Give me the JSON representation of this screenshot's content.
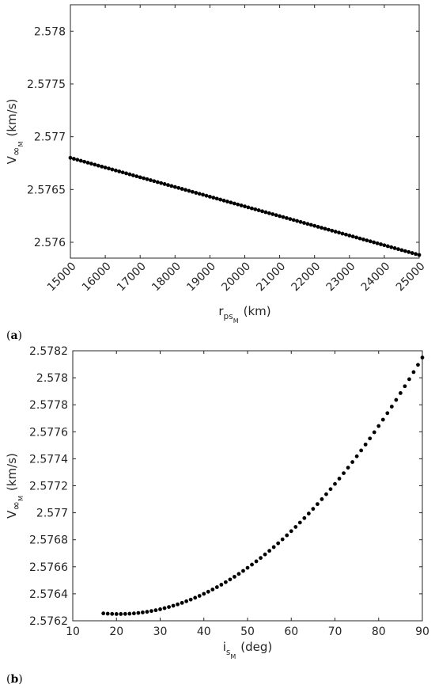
{
  "chart_data": [
    {
      "type": "scatter",
      "panel_label": "a",
      "xlabel": {
        "main": "r",
        "sub": "ps",
        "subsub": "M",
        "unit": "(km)"
      },
      "ylabel": {
        "main": "V",
        "sub": "∞",
        "subsub": "M",
        "unit": "(km/s)"
      },
      "xlim": [
        15000,
        25000
      ],
      "ylim": [
        2.57585,
        2.57825
      ],
      "xticks": [
        "15000",
        "16000",
        "17000",
        "18000",
        "19000",
        "20000",
        "21000",
        "22000",
        "23000",
        "24000",
        "25000"
      ],
      "xtick_values": [
        15000,
        16000,
        17000,
        18000,
        19000,
        20000,
        21000,
        22000,
        23000,
        24000,
        25000
      ],
      "yticks": [
        "2.576",
        "2.5765",
        "2.577",
        "2.5775",
        "2.578"
      ],
      "ytick_values": [
        2.576,
        2.5765,
        2.577,
        2.5775,
        2.578
      ],
      "series": [
        {
          "line": {
            "x_start": 15000,
            "x_end": 25000,
            "y_start": 2.5768,
            "y_end": 2.57588,
            "n_points": 101
          }
        }
      ],
      "grid": false,
      "marker_color": "#000000"
    },
    {
      "type": "scatter",
      "panel_label": "b",
      "xlabel": {
        "main": "i",
        "sub": "s",
        "subsub": "M",
        "unit": "(deg)"
      },
      "ylabel": {
        "main": "V",
        "sub": "∞",
        "subsub": "M",
        "unit": "(km/s)"
      },
      "xlim": [
        10,
        90
      ],
      "ylim": [
        2.5762,
        2.5782
      ],
      "xticks": [
        "10",
        "20",
        "30",
        "40",
        "50",
        "60",
        "70",
        "80",
        "90"
      ],
      "xtick_values": [
        10,
        20,
        30,
        40,
        50,
        60,
        70,
        80,
        90
      ],
      "yticks": [
        "2.5762",
        "2.5764",
        "2.5766",
        "2.5768",
        "2.577",
        "2.5772",
        "2.5774",
        "2.5776",
        "2.5778",
        "2.578",
        "2.5782"
      ],
      "ytick_values": [
        2.5762,
        2.5764,
        2.5766,
        2.5768,
        2.577,
        2.5772,
        2.5774,
        2.5776,
        2.5778,
        2.578,
        2.5782
      ],
      "series": [
        {
          "curve": {
            "x_start": 17,
            "x_end": 90,
            "n_points": 74,
            "x_min": 20.5,
            "y_min": 2.57625,
            "y_at_start": 2.57626,
            "y_at_end": 2.57815
          }
        }
      ],
      "grid": false,
      "marker_color": "#000000"
    }
  ]
}
